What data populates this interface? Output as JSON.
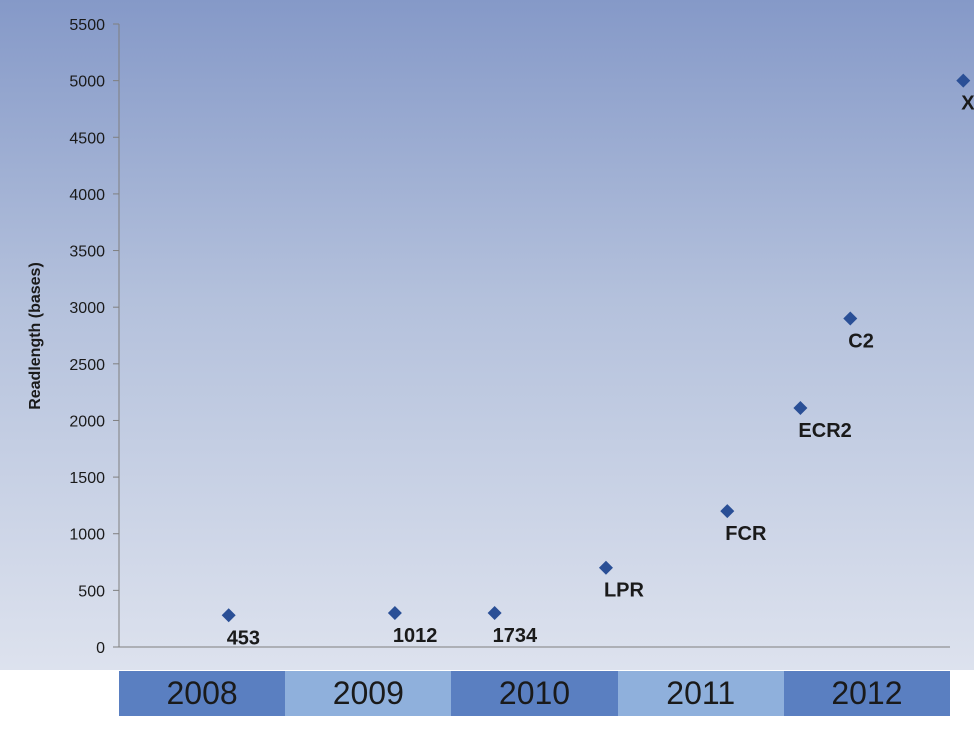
{
  "chart_data": {
    "type": "scatter",
    "ylabel": "Readlength (bases)",
    "ylim": [
      0,
      5500
    ],
    "yticks": [
      0,
      500,
      1000,
      1500,
      2000,
      2500,
      3000,
      3500,
      4000,
      4500,
      5000,
      5500
    ],
    "xlim": [
      2008,
      2013
    ],
    "categories": [
      "2008",
      "2009",
      "2010",
      "2011",
      "2012"
    ],
    "marker_color": "#2a4f96",
    "points": [
      {
        "x": 2008.66,
        "y": 280,
        "label": "453"
      },
      {
        "x": 2009.66,
        "y": 300,
        "label": "1012"
      },
      {
        "x": 2010.26,
        "y": 300,
        "label": "1734"
      },
      {
        "x": 2010.93,
        "y": 700,
        "label": "LPR"
      },
      {
        "x": 2011.66,
        "y": 1200,
        "label": "FCR"
      },
      {
        "x": 2012.1,
        "y": 2110,
        "label": "ECR2"
      },
      {
        "x": 2012.4,
        "y": 2900,
        "label": "C2"
      },
      {
        "x": 2013.08,
        "y": 5000,
        "label": "XL"
      }
    ]
  },
  "colors": {
    "bar_dark": "#5a7fc1",
    "bar_light": "#8fb0dc"
  }
}
